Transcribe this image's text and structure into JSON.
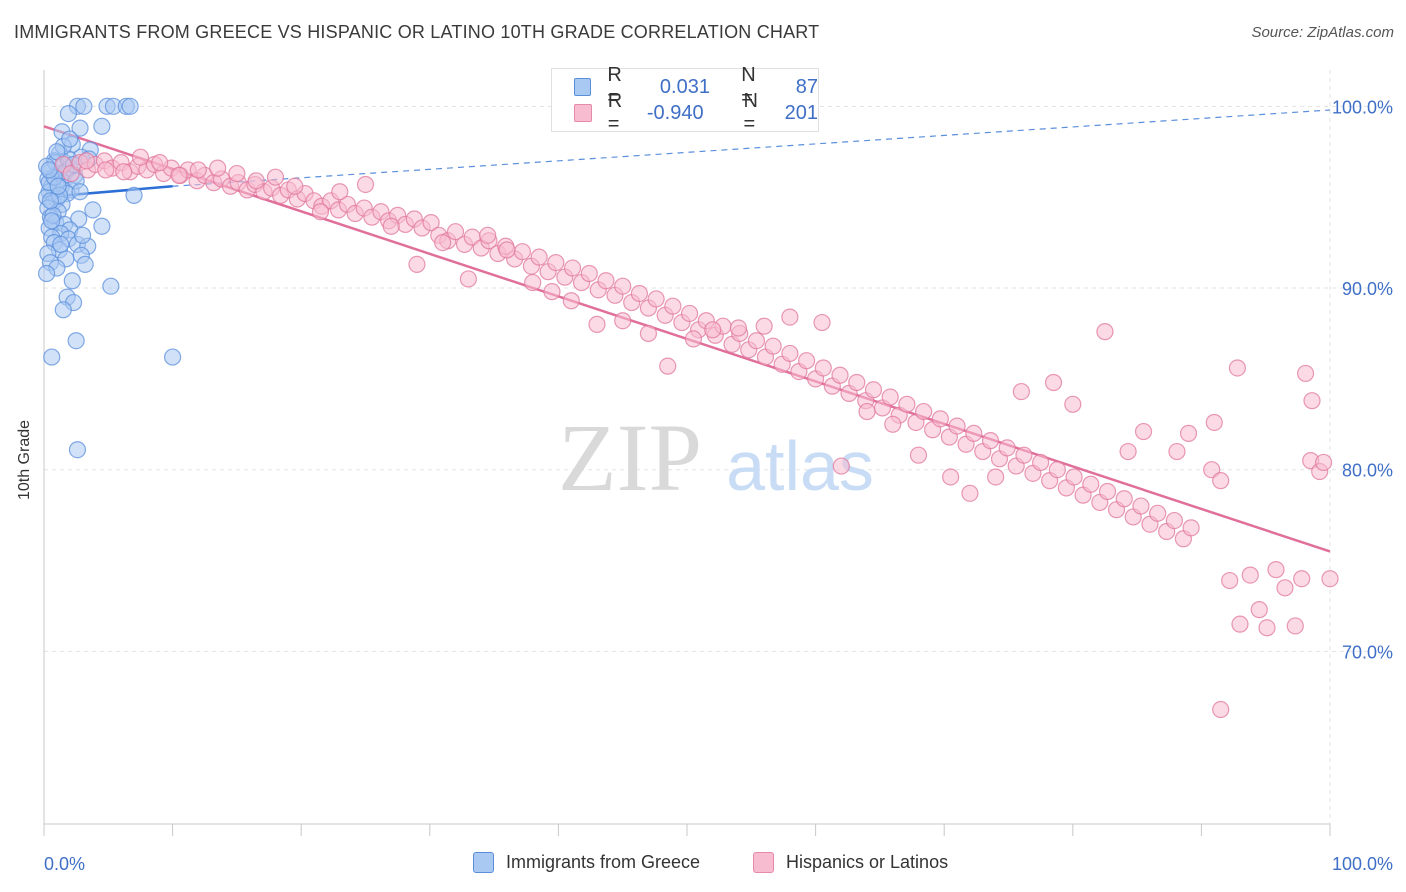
{
  "header": {
    "title": "IMMIGRANTS FROM GREECE VS HISPANIC OR LATINO 10TH GRADE CORRELATION CHART",
    "source": "Source: ZipAtlas.com"
  },
  "watermark": {
    "zip": "ZIP",
    "atlas": "atlas"
  },
  "legend": {
    "rows": [
      {
        "r_label": "R =",
        "r_value": "0.031",
        "n_label": "N =",
        "n_value": "87",
        "color": "#a9c8f2",
        "border": "#5a8fd8"
      },
      {
        "r_label": "R =",
        "r_value": "-0.940",
        "n_label": "N =",
        "n_value": "201",
        "color": "#f7bcd0",
        "border": "#e58aa8"
      }
    ]
  },
  "bottom_legend": [
    {
      "label": "Immigrants from Greece",
      "color": "#a9c8f2",
      "border": "#5a8fd8"
    },
    {
      "label": "Hispanics or Latinos",
      "color": "#f7bcd0",
      "border": "#e58aa8"
    }
  ],
  "chart_data": {
    "type": "scatter",
    "title": "IMMIGRANTS FROM GREECE VS HISPANIC OR LATINO 10TH GRADE CORRELATION CHART",
    "xlabel": "",
    "ylabel": "10th Grade",
    "x_tick_labels": [
      "0.0%",
      "100.0%"
    ],
    "y_tick_labels": [
      "100.0%",
      "90.0%",
      "80.0%",
      "70.0%"
    ],
    "y_ticks": [
      100,
      90,
      80,
      70
    ],
    "xlim": [
      0,
      100
    ],
    "ylim": [
      60.5,
      102
    ],
    "grid": true,
    "legend_position": "top-center",
    "series": [
      {
        "name": "Immigrants from Greece",
        "color": "#5b8fdc",
        "fill": "#a9c8f2",
        "r": 0.031,
        "n": 87,
        "trend": {
          "x0": 0,
          "y0": 95.0,
          "x1": 10,
          "y1": 95.6,
          "dashed_to_x": 100,
          "dashed_to_y": 99.8
        },
        "points": [
          [
            2.6,
            100
          ],
          [
            3.1,
            100
          ],
          [
            4.9,
            100
          ],
          [
            5.4,
            100
          ],
          [
            6.4,
            100
          ],
          [
            6.7,
            100
          ],
          [
            1.9,
            99.6
          ],
          [
            2.8,
            98.8
          ],
          [
            4.5,
            98.9
          ],
          [
            1.4,
            98.6
          ],
          [
            2.2,
            97.9
          ],
          [
            3.6,
            97.6
          ],
          [
            1.2,
            97.4
          ],
          [
            2.9,
            97.2
          ],
          [
            0.8,
            97.0
          ],
          [
            1.6,
            96.9
          ],
          [
            2.0,
            96.6
          ],
          [
            0.5,
            96.4
          ],
          [
            1.1,
            96.3
          ],
          [
            2.4,
            96.2
          ],
          [
            0.3,
            96.0
          ],
          [
            0.9,
            95.9
          ],
          [
            1.5,
            95.8
          ],
          [
            0.6,
            95.6
          ],
          [
            1.3,
            95.5
          ],
          [
            2.1,
            95.4
          ],
          [
            0.4,
            95.3
          ],
          [
            1.8,
            95.2
          ],
          [
            0.2,
            95.0
          ],
          [
            1.0,
            94.9
          ],
          [
            0.7,
            94.7
          ],
          [
            1.4,
            94.6
          ],
          [
            0.3,
            94.4
          ],
          [
            3.8,
            94.3
          ],
          [
            1.1,
            94.2
          ],
          [
            0.5,
            93.9
          ],
          [
            2.7,
            93.8
          ],
          [
            0.9,
            93.6
          ],
          [
            1.6,
            93.5
          ],
          [
            0.4,
            93.3
          ],
          [
            2.0,
            93.2
          ],
          [
            4.5,
            93.4
          ],
          [
            1.3,
            93.0
          ],
          [
            0.6,
            92.8
          ],
          [
            1.9,
            92.7
          ],
          [
            0.8,
            92.5
          ],
          [
            2.6,
            92.4
          ],
          [
            3.4,
            92.3
          ],
          [
            1.2,
            92.1
          ],
          [
            0.3,
            91.9
          ],
          [
            2.9,
            91.8
          ],
          [
            1.7,
            91.6
          ],
          [
            0.5,
            91.4
          ],
          [
            3.2,
            91.3
          ],
          [
            1.0,
            91.1
          ],
          [
            0.2,
            90.8
          ],
          [
            2.2,
            90.4
          ],
          [
            5.2,
            90.1
          ],
          [
            1.8,
            89.5
          ],
          [
            2.3,
            89.2
          ],
          [
            1.5,
            88.8
          ],
          [
            2.5,
            87.1
          ],
          [
            0.6,
            86.2
          ],
          [
            10.0,
            86.2
          ],
          [
            2.6,
            81.1
          ],
          [
            0.9,
            96.9
          ],
          [
            1.7,
            96.4
          ],
          [
            0.4,
            95.8
          ],
          [
            2.5,
            95.9
          ],
          [
            1.2,
            95.1
          ],
          [
            0.7,
            94.0
          ],
          [
            3.0,
            92.9
          ],
          [
            1.9,
            97.1
          ],
          [
            0.8,
            96.1
          ],
          [
            1.5,
            97.8
          ],
          [
            2.3,
            96.8
          ],
          [
            0.2,
            96.7
          ],
          [
            1.1,
            95.6
          ],
          [
            0.5,
            94.8
          ],
          [
            2.8,
            95.3
          ],
          [
            1.3,
            92.4
          ],
          [
            0.6,
            93.7
          ],
          [
            1.0,
            97.5
          ],
          [
            2.0,
            98.2
          ],
          [
            3.5,
            97.1
          ],
          [
            7.0,
            95.1
          ],
          [
            0.4,
            96.5
          ]
        ]
      },
      {
        "name": "Hispanics or Latinos",
        "color": "#e0779c",
        "fill": "#f7bcd0",
        "r": -0.94,
        "n": 201,
        "trend": {
          "x0": 0,
          "y0": 98.9,
          "x1": 100,
          "y1": 75.5
        },
        "points": [
          [
            1.5,
            96.8
          ],
          [
            2.1,
            96.3
          ],
          [
            2.8,
            96.9
          ],
          [
            3.4,
            96.5
          ],
          [
            4.0,
            96.8
          ],
          [
            4.7,
            97.0
          ],
          [
            5.3,
            96.6
          ],
          [
            6.0,
            96.9
          ],
          [
            6.7,
            96.4
          ],
          [
            7.3,
            96.7
          ],
          [
            8.0,
            96.5
          ],
          [
            8.6,
            96.8
          ],
          [
            9.3,
            96.3
          ],
          [
            9.9,
            96.6
          ],
          [
            10.6,
            96.2
          ],
          [
            11.2,
            96.5
          ],
          [
            11.9,
            95.9
          ],
          [
            12.5,
            96.2
          ],
          [
            13.2,
            95.8
          ],
          [
            13.8,
            96.0
          ],
          [
            14.5,
            95.6
          ],
          [
            15.1,
            95.8
          ],
          [
            15.8,
            95.4
          ],
          [
            16.4,
            95.7
          ],
          [
            17.1,
            95.3
          ],
          [
            17.7,
            95.5
          ],
          [
            18.4,
            95.1
          ],
          [
            19.0,
            95.4
          ],
          [
            19.7,
            94.9
          ],
          [
            20.3,
            95.2
          ],
          [
            21.0,
            94.8
          ],
          [
            21.6,
            94.5
          ],
          [
            22.3,
            94.8
          ],
          [
            22.9,
            94.3
          ],
          [
            23.6,
            94.6
          ],
          [
            24.2,
            94.1
          ],
          [
            24.9,
            94.4
          ],
          [
            25.5,
            93.9
          ],
          [
            26.2,
            94.2
          ],
          [
            26.8,
            93.7
          ],
          [
            27.5,
            94.0
          ],
          [
            28.1,
            93.5
          ],
          [
            28.8,
            93.8
          ],
          [
            29.4,
            93.3
          ],
          [
            30.1,
            93.6
          ],
          [
            30.7,
            92.9
          ],
          [
            31.4,
            92.6
          ],
          [
            32.0,
            93.1
          ],
          [
            32.7,
            92.4
          ],
          [
            33.3,
            92.8
          ],
          [
            34.0,
            92.2
          ],
          [
            34.6,
            92.6
          ],
          [
            35.3,
            91.9
          ],
          [
            35.9,
            92.3
          ],
          [
            36.6,
            91.6
          ],
          [
            37.2,
            92.0
          ],
          [
            37.9,
            91.2
          ],
          [
            38.5,
            91.7
          ],
          [
            39.2,
            90.9
          ],
          [
            39.8,
            91.4
          ],
          [
            40.5,
            90.6
          ],
          [
            41.1,
            91.1
          ],
          [
            41.8,
            90.3
          ],
          [
            42.4,
            90.8
          ],
          [
            43.1,
            89.9
          ],
          [
            43.7,
            90.4
          ],
          [
            44.4,
            89.6
          ],
          [
            45.0,
            90.1
          ],
          [
            45.7,
            89.2
          ],
          [
            46.3,
            89.7
          ],
          [
            47.0,
            88.9
          ],
          [
            47.6,
            89.4
          ],
          [
            48.3,
            88.5
          ],
          [
            48.9,
            89.0
          ],
          [
            49.6,
            88.1
          ],
          [
            50.2,
            88.6
          ],
          [
            50.9,
            87.7
          ],
          [
            51.5,
            88.2
          ],
          [
            52.2,
            87.4
          ],
          [
            52.8,
            87.9
          ],
          [
            53.5,
            86.9
          ],
          [
            54.1,
            87.5
          ],
          [
            54.8,
            86.6
          ],
          [
            55.4,
            87.1
          ],
          [
            56.1,
            86.2
          ],
          [
            56.7,
            86.8
          ],
          [
            57.4,
            85.8
          ],
          [
            58.0,
            86.4
          ],
          [
            58.7,
            85.4
          ],
          [
            59.3,
            86.0
          ],
          [
            60.0,
            85.0
          ],
          [
            60.6,
            85.6
          ],
          [
            61.3,
            84.6
          ],
          [
            61.9,
            85.2
          ],
          [
            62.6,
            84.2
          ],
          [
            63.2,
            84.8
          ],
          [
            63.9,
            83.8
          ],
          [
            64.5,
            84.4
          ],
          [
            65.2,
            83.4
          ],
          [
            65.8,
            84.0
          ],
          [
            66.5,
            83.0
          ],
          [
            67.1,
            83.6
          ],
          [
            67.8,
            82.6
          ],
          [
            68.4,
            83.2
          ],
          [
            69.1,
            82.2
          ],
          [
            69.7,
            82.8
          ],
          [
            70.4,
            81.8
          ],
          [
            71.0,
            82.4
          ],
          [
            71.7,
            81.4
          ],
          [
            72.3,
            82.0
          ],
          [
            73.0,
            81.0
          ],
          [
            73.6,
            81.6
          ],
          [
            74.3,
            80.6
          ],
          [
            74.9,
            81.2
          ],
          [
            75.6,
            80.2
          ],
          [
            76.2,
            80.8
          ],
          [
            76.9,
            79.8
          ],
          [
            77.5,
            80.4
          ],
          [
            78.2,
            79.4
          ],
          [
            78.8,
            80.0
          ],
          [
            79.5,
            79.0
          ],
          [
            80.1,
            79.6
          ],
          [
            80.8,
            78.6
          ],
          [
            81.4,
            79.2
          ],
          [
            82.1,
            78.2
          ],
          [
            82.7,
            78.8
          ],
          [
            83.4,
            77.8
          ],
          [
            84.0,
            78.4
          ],
          [
            84.7,
            77.4
          ],
          [
            85.3,
            78.0
          ],
          [
            86.0,
            77.0
          ],
          [
            86.6,
            77.6
          ],
          [
            87.3,
            76.6
          ],
          [
            87.9,
            77.2
          ],
          [
            88.6,
            76.2
          ],
          [
            89.2,
            76.8
          ],
          [
            90.8,
            80.0
          ],
          [
            91.5,
            79.4
          ],
          [
            92.2,
            73.9
          ],
          [
            93.0,
            71.5
          ],
          [
            93.8,
            74.2
          ],
          [
            94.5,
            72.3
          ],
          [
            95.1,
            71.3
          ],
          [
            95.8,
            74.5
          ],
          [
            96.5,
            73.5
          ],
          [
            97.3,
            71.4
          ],
          [
            97.8,
            74.0
          ],
          [
            98.5,
            80.5
          ],
          [
            99.2,
            79.9
          ],
          [
            100.0,
            74.0
          ],
          [
            99.5,
            80.4
          ],
          [
            98.1,
            85.3
          ],
          [
            98.6,
            83.8
          ],
          [
            92.8,
            85.6
          ],
          [
            91.0,
            82.6
          ],
          [
            89.0,
            82.0
          ],
          [
            88.1,
            81.0
          ],
          [
            85.5,
            82.1
          ],
          [
            84.3,
            81.0
          ],
          [
            82.5,
            87.6
          ],
          [
            80.0,
            83.6
          ],
          [
            78.5,
            84.8
          ],
          [
            76.0,
            84.3
          ],
          [
            74.0,
            79.6
          ],
          [
            72.0,
            78.7
          ],
          [
            70.5,
            79.6
          ],
          [
            68.0,
            80.8
          ],
          [
            66.0,
            82.5
          ],
          [
            64.0,
            83.2
          ],
          [
            62.0,
            80.2
          ],
          [
            60.5,
            88.1
          ],
          [
            58.0,
            88.4
          ],
          [
            56.0,
            87.9
          ],
          [
            54.0,
            87.8
          ],
          [
            52.0,
            87.7
          ],
          [
            50.5,
            87.2
          ],
          [
            48.5,
            85.7
          ],
          [
            47.0,
            87.5
          ],
          [
            45.0,
            88.2
          ],
          [
            43.0,
            88.0
          ],
          [
            41.0,
            89.3
          ],
          [
            39.5,
            89.8
          ],
          [
            38.0,
            90.3
          ],
          [
            36.0,
            92.1
          ],
          [
            34.5,
            92.9
          ],
          [
            33.0,
            90.5
          ],
          [
            31.0,
            92.5
          ],
          [
            29.0,
            91.3
          ],
          [
            27.0,
            93.4
          ],
          [
            25.0,
            95.7
          ],
          [
            23.0,
            95.3
          ],
          [
            21.5,
            94.2
          ],
          [
            19.5,
            95.6
          ],
          [
            18.0,
            96.1
          ],
          [
            16.5,
            95.9
          ],
          [
            15.0,
            96.3
          ],
          [
            13.5,
            96.6
          ],
          [
            12.0,
            96.5
          ],
          [
            10.5,
            96.2
          ],
          [
            9.0,
            96.9
          ],
          [
            7.5,
            97.2
          ],
          [
            6.2,
            96.4
          ],
          [
            4.8,
            96.5
          ],
          [
            3.3,
            97.0
          ],
          [
            91.5,
            66.8
          ]
        ]
      }
    ]
  }
}
